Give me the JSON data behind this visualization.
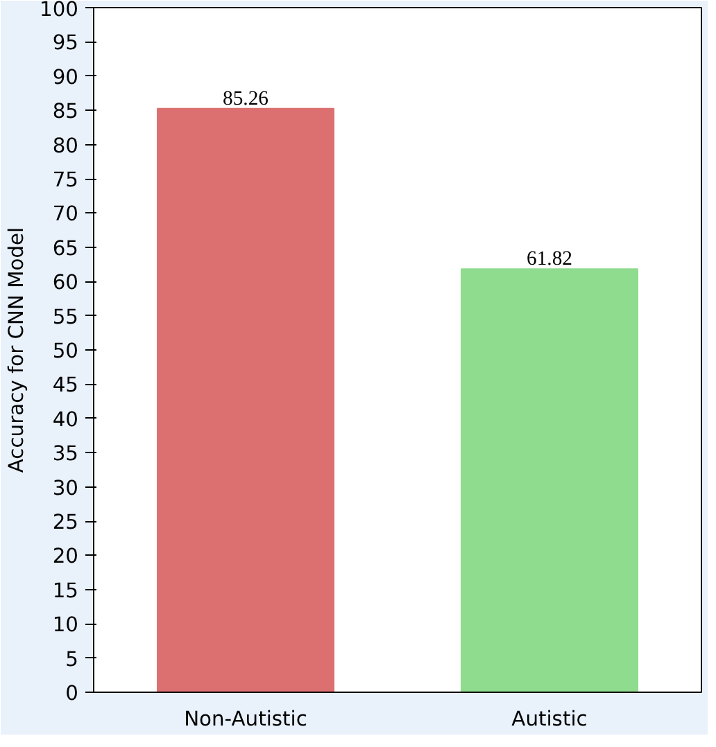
{
  "chart_data": {
    "type": "bar",
    "ylabel": "Accuracy for CNN Model",
    "categories": [
      "Non-Autistic",
      "Autistic"
    ],
    "values": [
      85.26,
      61.82
    ],
    "colors": [
      "#dc7070",
      "#8fdc8f"
    ],
    "ylim": [
      0,
      100
    ],
    "yticks": [
      0,
      5,
      10,
      15,
      20,
      25,
      30,
      35,
      40,
      45,
      50,
      55,
      60,
      65,
      70,
      75,
      80,
      85,
      90,
      95,
      100
    ],
    "data_labels": true,
    "grid": false
  }
}
